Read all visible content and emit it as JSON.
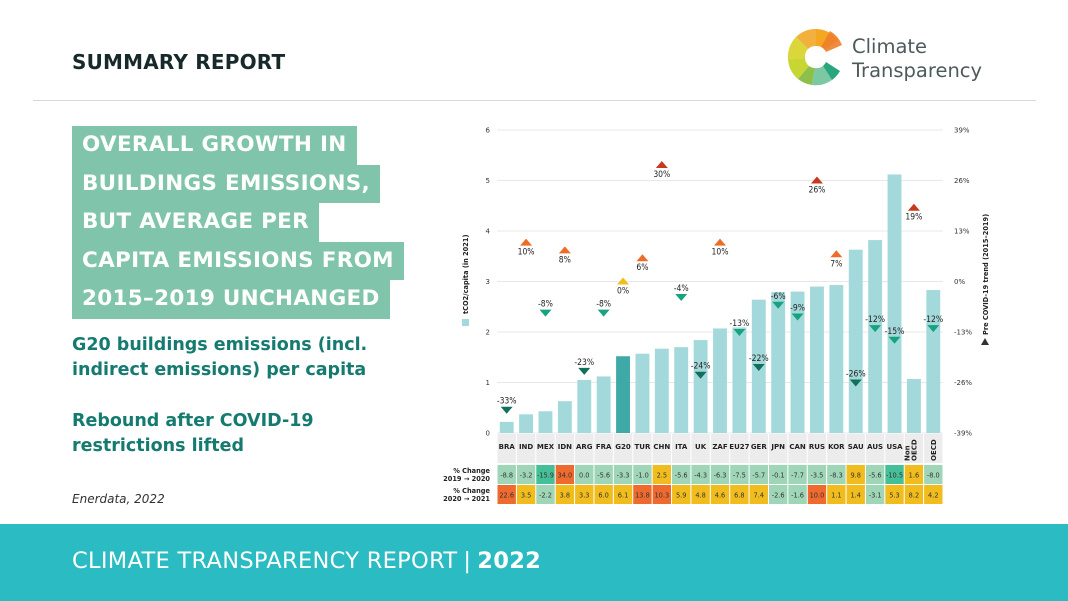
{
  "header": {
    "title": "SUMMARY REPORT"
  },
  "logo": {
    "line1": "Climate",
    "line2": "Transparency"
  },
  "headline": {
    "lines": [
      "OVERALL GROWTH IN",
      "BUILDINGS EMISSIONS,",
      "BUT AVERAGE PER",
      "CAPITA EMISSIONS FROM",
      "2015–2019 UNCHANGED"
    ]
  },
  "subtitle1": "G20 buildings emissions (incl. indirect emissions) per capita",
  "subtitle2": "Rebound after COVID-19 restrictions lifted",
  "source": "Enerdata, 2022",
  "footer": {
    "text": "CLIMATE TRANSPARENCY REPORT",
    "separator": "|",
    "year": "2022"
  },
  "colors": {
    "bar": "#a3d9da",
    "bar_highlight": "#3ea9a7",
    "headline_bg": "#80c5ab",
    "subtitle": "#157a6f",
    "footer_bg": "#2bbcc3",
    "marker_up_high": "#c8381f",
    "marker_up_mid": "#ec6d2a",
    "marker_zero": "#f0bd1b",
    "marker_down": "#17a37f",
    "marker_down_dark": "#11705b",
    "cell_red": "#ee6a2f",
    "cell_yellow": "#f1bd1e",
    "cell_lightgreen": "#9fd6b8",
    "cell_green": "#45bf97",
    "cat_bg": "#ececec"
  },
  "chart_data": {
    "type": "bar",
    "title": "G20 buildings emissions (incl. indirect emissions) per capita",
    "categories": [
      "BRA",
      "IND",
      "MEX",
      "IDN",
      "ARG",
      "FRA",
      "G20",
      "TUR",
      "CHN",
      "ITA",
      "UK",
      "ZAF",
      "EU27",
      "GER",
      "JPN",
      "CAN",
      "RUS",
      "KOR",
      "SAU",
      "AUS",
      "USA",
      "Non OECD",
      "OECD"
    ],
    "highlight": "G20",
    "ylabel": "tCO2/capita (in 2021)",
    "ylim": [
      0,
      6
    ],
    "yticks": [
      0,
      1,
      2,
      3,
      4,
      5,
      6
    ],
    "y2label": "Pre COVID-19 trend (2015–2019)",
    "y2lim": [
      -39,
      39
    ],
    "y2ticks": [
      "39%",
      "26%",
      "13%",
      "0%",
      "-13%",
      "-26%",
      "-39%"
    ],
    "grid": true,
    "legend": [
      {
        "marker": "square",
        "label": "tCO2/capita (in 2021)",
        "position": "left-vertical"
      },
      {
        "marker": "triangle",
        "label": "Pre COVID-19 trend (2015–2019)",
        "position": "right-vertical"
      }
    ],
    "series": [
      {
        "name": "tCO2/capita (in 2021)",
        "values": [
          0.22,
          0.37,
          0.43,
          0.63,
          1.05,
          1.12,
          1.52,
          1.57,
          1.67,
          1.7,
          1.84,
          2.07,
          2.09,
          2.64,
          2.79,
          2.8,
          2.9,
          2.93,
          3.63,
          3.82,
          5.12,
          1.07,
          2.83
        ]
      },
      {
        "name": "Pre COVID-19 trend (2015–2019)",
        "values": [
          -33,
          10,
          -8,
          8,
          -23,
          -8,
          0,
          6,
          30,
          -4,
          -24,
          10,
          -13,
          -22,
          -6,
          -9,
          26,
          7,
          -26,
          -12,
          -15,
          19,
          -12
        ],
        "labels": [
          "-33%",
          "10%",
          "-8%",
          "8%",
          "-23%",
          "-8%",
          "0%",
          "6%",
          "30%",
          "-4%",
          "-24%",
          "10%",
          "-13%",
          "-22%",
          "-6%",
          "-9%",
          "26%",
          "7%",
          "-26%",
          "-12%",
          "-15%",
          "19%",
          "-12%"
        ]
      }
    ],
    "table": {
      "rows": [
        {
          "label": [
            "% Change",
            "2019 → 2020"
          ],
          "values": [
            "-8.8",
            "-3.2",
            "-15.9",
            "34.0",
            "0.0",
            "-5.6",
            "-3.3",
            "-1.0",
            "2.5",
            "-5.6",
            "-4.3",
            "-6.3",
            "-7.5",
            "-5.7",
            "-0.1",
            "-7.7",
            "-3.5",
            "-8.3",
            "9.8",
            "-5.6",
            "-10.5",
            "1.6",
            "-8.0"
          ]
        },
        {
          "label": [
            "% Change",
            "2020 → 2021"
          ],
          "values": [
            "22.6",
            "3.5",
            "-2.2",
            "3.8",
            "3.3",
            "6.0",
            "6.1",
            "13.8",
            "10.3",
            "5.9",
            "4.8",
            "4.6",
            "6.8",
            "7.4",
            "-2.6",
            "-1.6",
            "10.0",
            "1.1",
            "1.4",
            "-3.1",
            "5.3",
            "8.2",
            "4.2"
          ]
        }
      ]
    }
  }
}
